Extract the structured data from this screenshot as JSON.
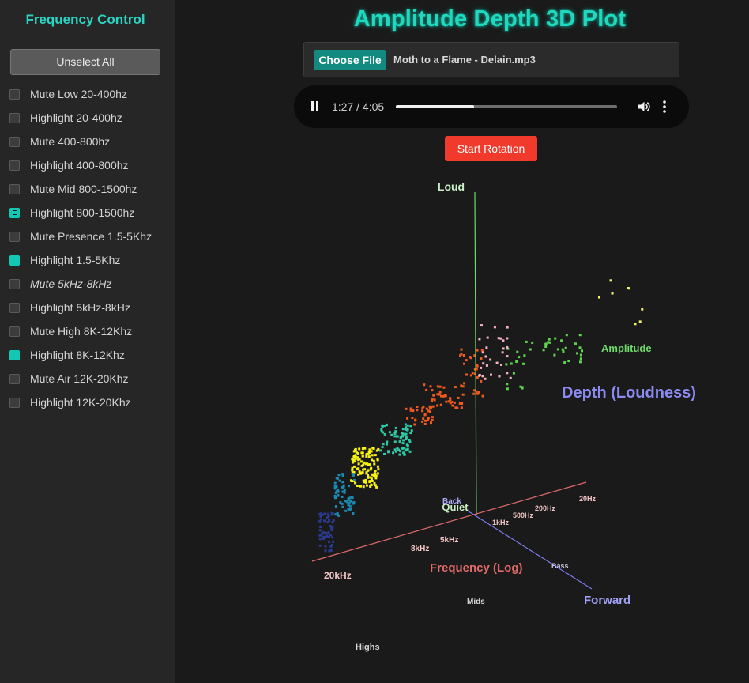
{
  "sidebar": {
    "title": "Frequency Control",
    "unselect_label": "Unselect All",
    "items": [
      {
        "label": "Mute Low 20-400hz",
        "checked": false,
        "italic": false
      },
      {
        "label": "Highlight 20-400hz",
        "checked": false,
        "italic": false
      },
      {
        "label": "Mute 400-800hz",
        "checked": false,
        "italic": false
      },
      {
        "label": "Highlight 400-800hz",
        "checked": false,
        "italic": false
      },
      {
        "label": "Mute Mid 800-1500hz",
        "checked": false,
        "italic": false
      },
      {
        "label": "Highlight 800-1500hz",
        "checked": true,
        "italic": false
      },
      {
        "label": "Mute Presence 1.5-5Khz",
        "checked": false,
        "italic": false
      },
      {
        "label": "Highlight 1.5-5Khz",
        "checked": true,
        "italic": false
      },
      {
        "label": "Mute 5kHz-8kHz",
        "checked": false,
        "italic": true
      },
      {
        "label": "Highlight 5kHz-8kHz",
        "checked": false,
        "italic": false
      },
      {
        "label": "Mute High 8K-12Khz",
        "checked": false,
        "italic": false
      },
      {
        "label": "Highlight 8K-12Khz",
        "checked": true,
        "italic": false
      },
      {
        "label": "Mute Air 12K-20Khz",
        "checked": false,
        "italic": false
      },
      {
        "label": "Highlight 12K-20Khz",
        "checked": false,
        "italic": false
      }
    ]
  },
  "header": {
    "title": "Amplitude Depth 3D Plot"
  },
  "file": {
    "button_label": "Choose File",
    "name": "Moth to a Flame - Delain.mp3"
  },
  "player": {
    "time": "1:27 / 4:05",
    "progress": 0.355
  },
  "controls": {
    "rotation_label": "Start Rotation"
  },
  "plot": {
    "labels": {
      "loud": "Loud",
      "quiet": "Quiet",
      "back": "Back",
      "forward": "Forward",
      "amplitude": "Amplitude",
      "depth": "Depth (Loudness)",
      "frequency": "Frequency (Log)",
      "bass": "Bass",
      "mids": "Mids",
      "highs": "Highs"
    },
    "freq_ticks": [
      "20Hz",
      "200Hz",
      "500Hz",
      "1kHz",
      "5kHz",
      "8kHz",
      "20kHz"
    ],
    "colors": {
      "amplitude_axis": "#6fd96a",
      "frequency_axis": "#e06a6a",
      "depth_axis": "#7d7df2",
      "depth_label": "#8a8af0",
      "title": "#1fd9be"
    },
    "band_colors": [
      "#f2f26a",
      "#5fd44e",
      "#f5b3c6",
      "#ef5a1c",
      "#2ec9a7",
      "#f7f212",
      "#1b8ab3",
      "#2b3a8f"
    ]
  }
}
